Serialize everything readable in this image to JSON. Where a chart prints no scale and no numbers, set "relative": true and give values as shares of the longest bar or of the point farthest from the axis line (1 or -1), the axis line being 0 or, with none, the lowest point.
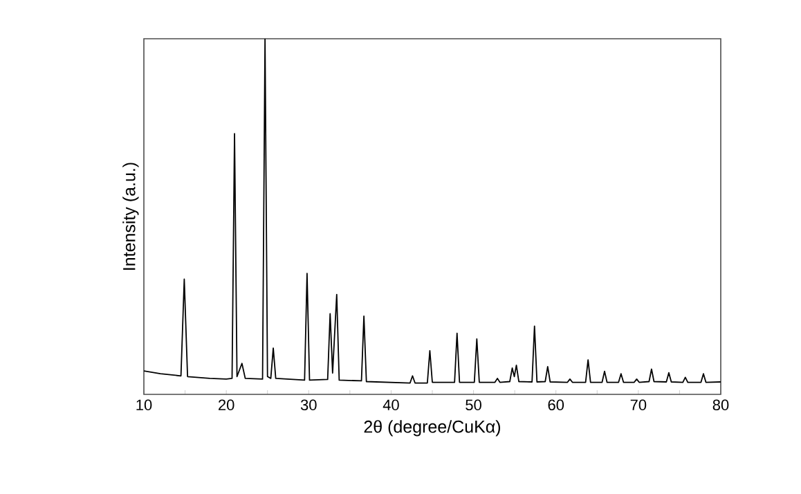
{
  "chart_data": {
    "type": "line",
    "relative": true,
    "xlabel": "2θ (degree/CuKα)",
    "ylabel": "Intensity (a.u.)",
    "xlim": [
      10,
      80
    ],
    "xticks": [
      10,
      {
        "value": 15,
        "label": null
      },
      20,
      {
        "value": 25,
        "label": null
      },
      30,
      {
        "value": 35,
        "label": null
      },
      40,
      {
        "value": 45,
        "label": null
      },
      50,
      {
        "value": 55,
        "label": null
      },
      60,
      {
        "value": 65,
        "label": null
      },
      70,
      {
        "value": 75,
        "label": null
      },
      80
    ],
    "series": [
      {
        "color": "#000000",
        "x": [
          10,
          12,
          14.5,
          14.9,
          15.3,
          18,
          20,
          20.7,
          21.0,
          21.3,
          21.9,
          22.3,
          24.4,
          24.7,
          25.0,
          25.4,
          25.7,
          26.0,
          29.5,
          29.8,
          30.1,
          32.3,
          32.6,
          32.9,
          33.4,
          33.7,
          36.4,
          36.7,
          37.0,
          42.3,
          42.6,
          42.9,
          44.4,
          44.7,
          45.0,
          47.7,
          48.0,
          48.3,
          50.1,
          50.4,
          50.7,
          52.6,
          52.9,
          53.2,
          54.4,
          54.7,
          54.95,
          55.2,
          55.5,
          57.1,
          57.4,
          57.7,
          58.7,
          59.0,
          59.3,
          61.4,
          61.7,
          62.0,
          63.6,
          63.9,
          64.2,
          65.6,
          65.9,
          66.2,
          67.6,
          67.9,
          68.2,
          69.5,
          69.8,
          70.1,
          71.3,
          71.6,
          71.9,
          73.4,
          73.7,
          74.0,
          75.4,
          75.7,
          76.0,
          77.6,
          77.9,
          78.2,
          80
        ],
        "values": [
          0.066,
          0.058,
          0.052,
          0.324,
          0.05,
          0.045,
          0.043,
          0.045,
          0.733,
          0.05,
          0.087,
          0.045,
          0.043,
          1.0,
          0.05,
          0.045,
          0.13,
          0.045,
          0.04,
          0.34,
          0.04,
          0.042,
          0.227,
          0.06,
          0.281,
          0.04,
          0.038,
          0.22,
          0.036,
          0.032,
          0.052,
          0.032,
          0.032,
          0.123,
          0.034,
          0.034,
          0.172,
          0.034,
          0.034,
          0.156,
          0.034,
          0.034,
          0.045,
          0.034,
          0.036,
          0.074,
          0.05,
          0.082,
          0.036,
          0.035,
          0.192,
          0.035,
          0.036,
          0.078,
          0.035,
          0.034,
          0.043,
          0.034,
          0.034,
          0.097,
          0.034,
          0.034,
          0.065,
          0.034,
          0.034,
          0.058,
          0.034,
          0.034,
          0.043,
          0.034,
          0.036,
          0.071,
          0.036,
          0.035,
          0.061,
          0.035,
          0.034,
          0.048,
          0.034,
          0.034,
          0.058,
          0.034,
          0.035
        ]
      }
    ]
  }
}
